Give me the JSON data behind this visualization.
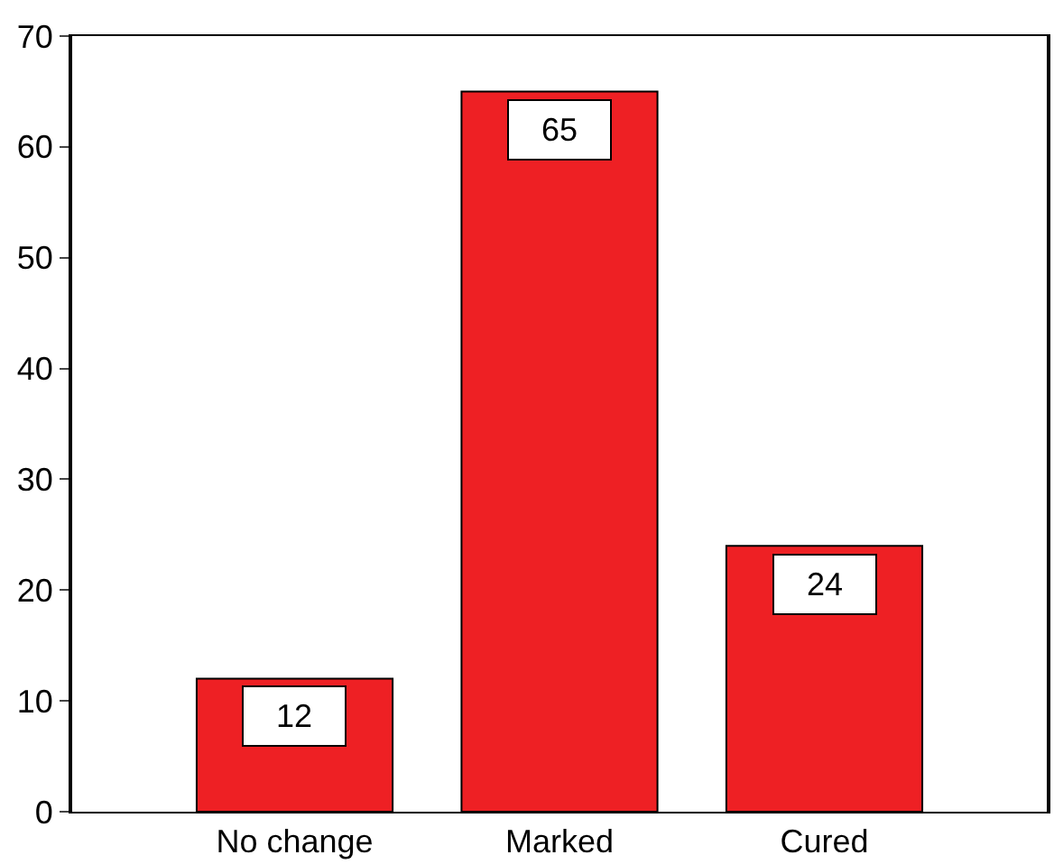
{
  "chart_data": {
    "type": "bar",
    "categories": [
      "No change",
      "Marked",
      "Cured"
    ],
    "values": [
      12,
      65,
      24
    ],
    "color": "#ee2024",
    "ylim": [
      0,
      70
    ],
    "yticks": [
      0,
      10,
      20,
      30,
      40,
      50,
      60,
      70
    ],
    "data_labels": true
  }
}
